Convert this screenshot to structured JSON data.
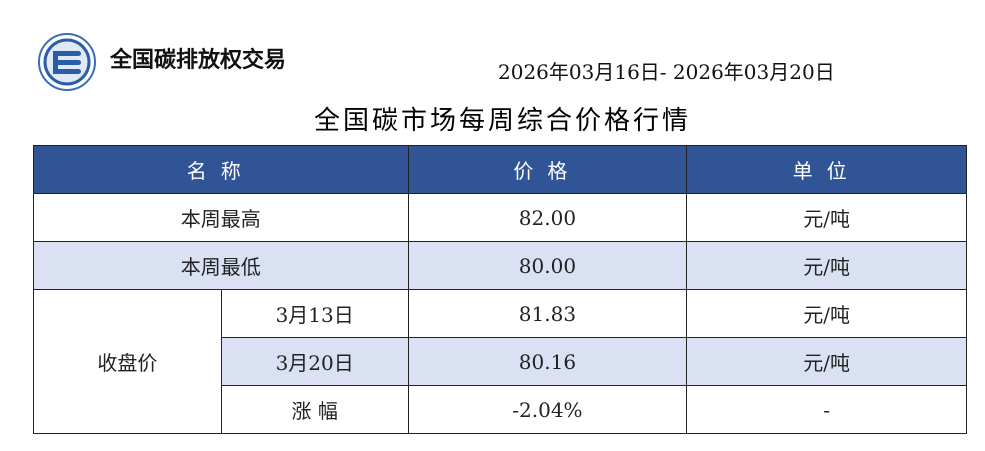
{
  "header": {
    "brand": "全国碳排放权交易",
    "date_range": "2026年03月16日- 2026年03月20日",
    "title": "全国碳市场每周综合价格行情",
    "brand_color": "#305496"
  },
  "table": {
    "columns": [
      "名称",
      "价格",
      "单位"
    ],
    "rows": [
      {
        "name": "本周最高",
        "price": "82.00",
        "unit": "元/吨"
      },
      {
        "name": "本周最低",
        "price": "80.00",
        "unit": "元/吨"
      },
      {
        "group": "收盘价",
        "sub": "3月13日",
        "price": "81.83",
        "unit": "元/吨"
      },
      {
        "sub": "3月20日",
        "price": "80.16",
        "unit": "元/吨"
      },
      {
        "sub": "涨 幅",
        "price": "-2.04%",
        "unit": "-"
      }
    ]
  }
}
